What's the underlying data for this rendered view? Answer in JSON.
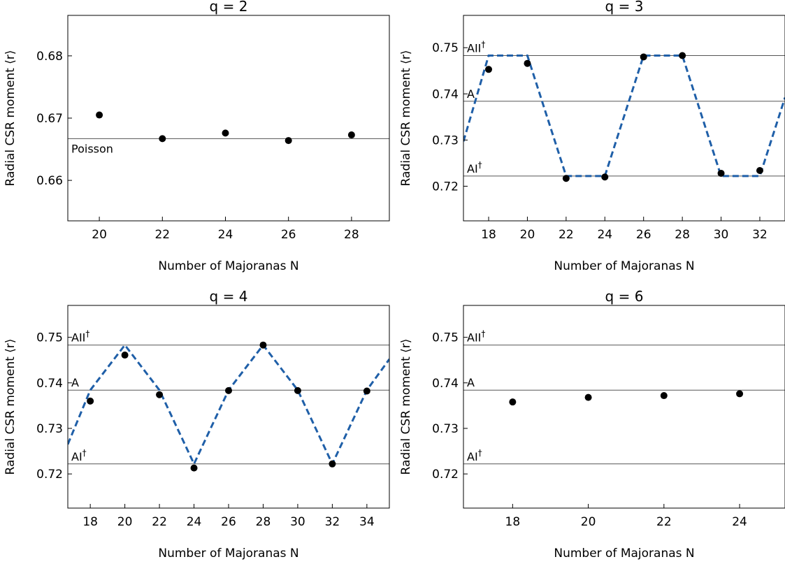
{
  "colors": {
    "theory_line": "#1f5fa8",
    "points": "#000000",
    "reference": "#555555"
  },
  "chart_data": [
    {
      "type": "scatter",
      "title": "q = 2",
      "xlabel": "Number of Majoranas N",
      "ylabel": "Radial CSR moment ⟨r⟩",
      "xlim": [
        19,
        29.2
      ],
      "ylim": [
        0.6535,
        0.6865
      ],
      "xticks": [
        20,
        22,
        24,
        26,
        28
      ],
      "yticks": [
        0.66,
        0.67,
        0.68
      ],
      "ytick_labels": [
        "0.66",
        "0.67",
        "0.68"
      ],
      "points": {
        "x": [
          20,
          22,
          24,
          26,
          28
        ],
        "y": [
          0.6705,
          0.6667,
          0.6676,
          0.6664,
          0.6673
        ]
      },
      "references": [
        {
          "label": "Poisson",
          "y": 0.6667
        }
      ],
      "theory_line": null
    },
    {
      "type": "scatter",
      "title": "q = 3",
      "xlabel": "Number of Majoranas N",
      "ylabel": "Radial CSR moment ⟨r⟩",
      "xlim": [
        16.7,
        33.3
      ],
      "ylim": [
        0.7125,
        0.757
      ],
      "xticks": [
        18,
        20,
        22,
        24,
        26,
        28,
        30,
        32
      ],
      "yticks": [
        0.72,
        0.73,
        0.74,
        0.75
      ],
      "ytick_labels": [
        "0.72",
        "0.73",
        "0.74",
        "0.75"
      ],
      "points": {
        "x": [
          18,
          20,
          22,
          24,
          26,
          28,
          30,
          32
        ],
        "y": [
          0.7453,
          0.7466,
          0.7217,
          0.722,
          0.748,
          0.7483,
          0.7228,
          0.7234
        ]
      },
      "references": [
        {
          "label": "AII",
          "sup": "†",
          "y": 0.7483
        },
        {
          "label": "A",
          "sup": "",
          "y": 0.7384
        },
        {
          "label": "AI",
          "sup": "†",
          "y": 0.7222
        }
      ],
      "theory_line": {
        "x": [
          16.7,
          18,
          20,
          22,
          24,
          26,
          28,
          30,
          32,
          33.3
        ],
        "y": [
          0.7297,
          0.7483,
          0.7483,
          0.7222,
          0.7222,
          0.7483,
          0.7483,
          0.7222,
          0.7222,
          0.7392
        ]
      }
    },
    {
      "type": "scatter",
      "title": "q = 4",
      "xlabel": "Number of Majoranas N",
      "ylabel": "Radial CSR moment ⟨r⟩",
      "xlim": [
        16.7,
        35.3
      ],
      "ylim": [
        0.7125,
        0.757
      ],
      "xticks": [
        18,
        20,
        22,
        24,
        26,
        28,
        30,
        32,
        34
      ],
      "yticks": [
        0.72,
        0.73,
        0.74,
        0.75
      ],
      "ytick_labels": [
        "0.72",
        "0.73",
        "0.74",
        "0.75"
      ],
      "points": {
        "x": [
          18,
          20,
          22,
          24,
          26,
          28,
          30,
          32,
          34
        ],
        "y": [
          0.736,
          0.7461,
          0.7374,
          0.7213,
          0.7383,
          0.7483,
          0.7383,
          0.7222,
          0.7382
        ]
      },
      "references": [
        {
          "label": "AII",
          "sup": "†",
          "y": 0.7483
        },
        {
          "label": "A",
          "sup": "",
          "y": 0.7384
        },
        {
          "label": "AI",
          "sup": "†",
          "y": 0.7222
        }
      ],
      "theory_line": {
        "x": [
          16.7,
          18,
          20,
          22,
          24,
          26,
          28,
          30,
          32,
          34,
          35.3
        ],
        "y": [
          0.7265,
          0.7384,
          0.7483,
          0.7384,
          0.7222,
          0.7384,
          0.7483,
          0.7384,
          0.7222,
          0.7384,
          0.7452
        ]
      }
    },
    {
      "type": "scatter",
      "title": "q = 6",
      "xlabel": "Number of Majoranas N",
      "ylabel": "Radial CSR moment ⟨r⟩",
      "xlim": [
        16.7,
        25.2
      ],
      "ylim": [
        0.7125,
        0.757
      ],
      "xticks": [
        18,
        20,
        22,
        24
      ],
      "yticks": [
        0.72,
        0.73,
        0.74,
        0.75
      ],
      "ytick_labels": [
        "0.72",
        "0.73",
        "0.74",
        "0.75"
      ],
      "points": {
        "x": [
          18,
          20,
          22,
          24
        ],
        "y": [
          0.7358,
          0.7368,
          0.7372,
          0.7376
        ]
      },
      "references": [
        {
          "label": "AII",
          "sup": "†",
          "y": 0.7483
        },
        {
          "label": "A",
          "sup": "",
          "y": 0.7384
        },
        {
          "label": "AI",
          "sup": "†",
          "y": 0.7222
        }
      ],
      "theory_line": null
    }
  ]
}
